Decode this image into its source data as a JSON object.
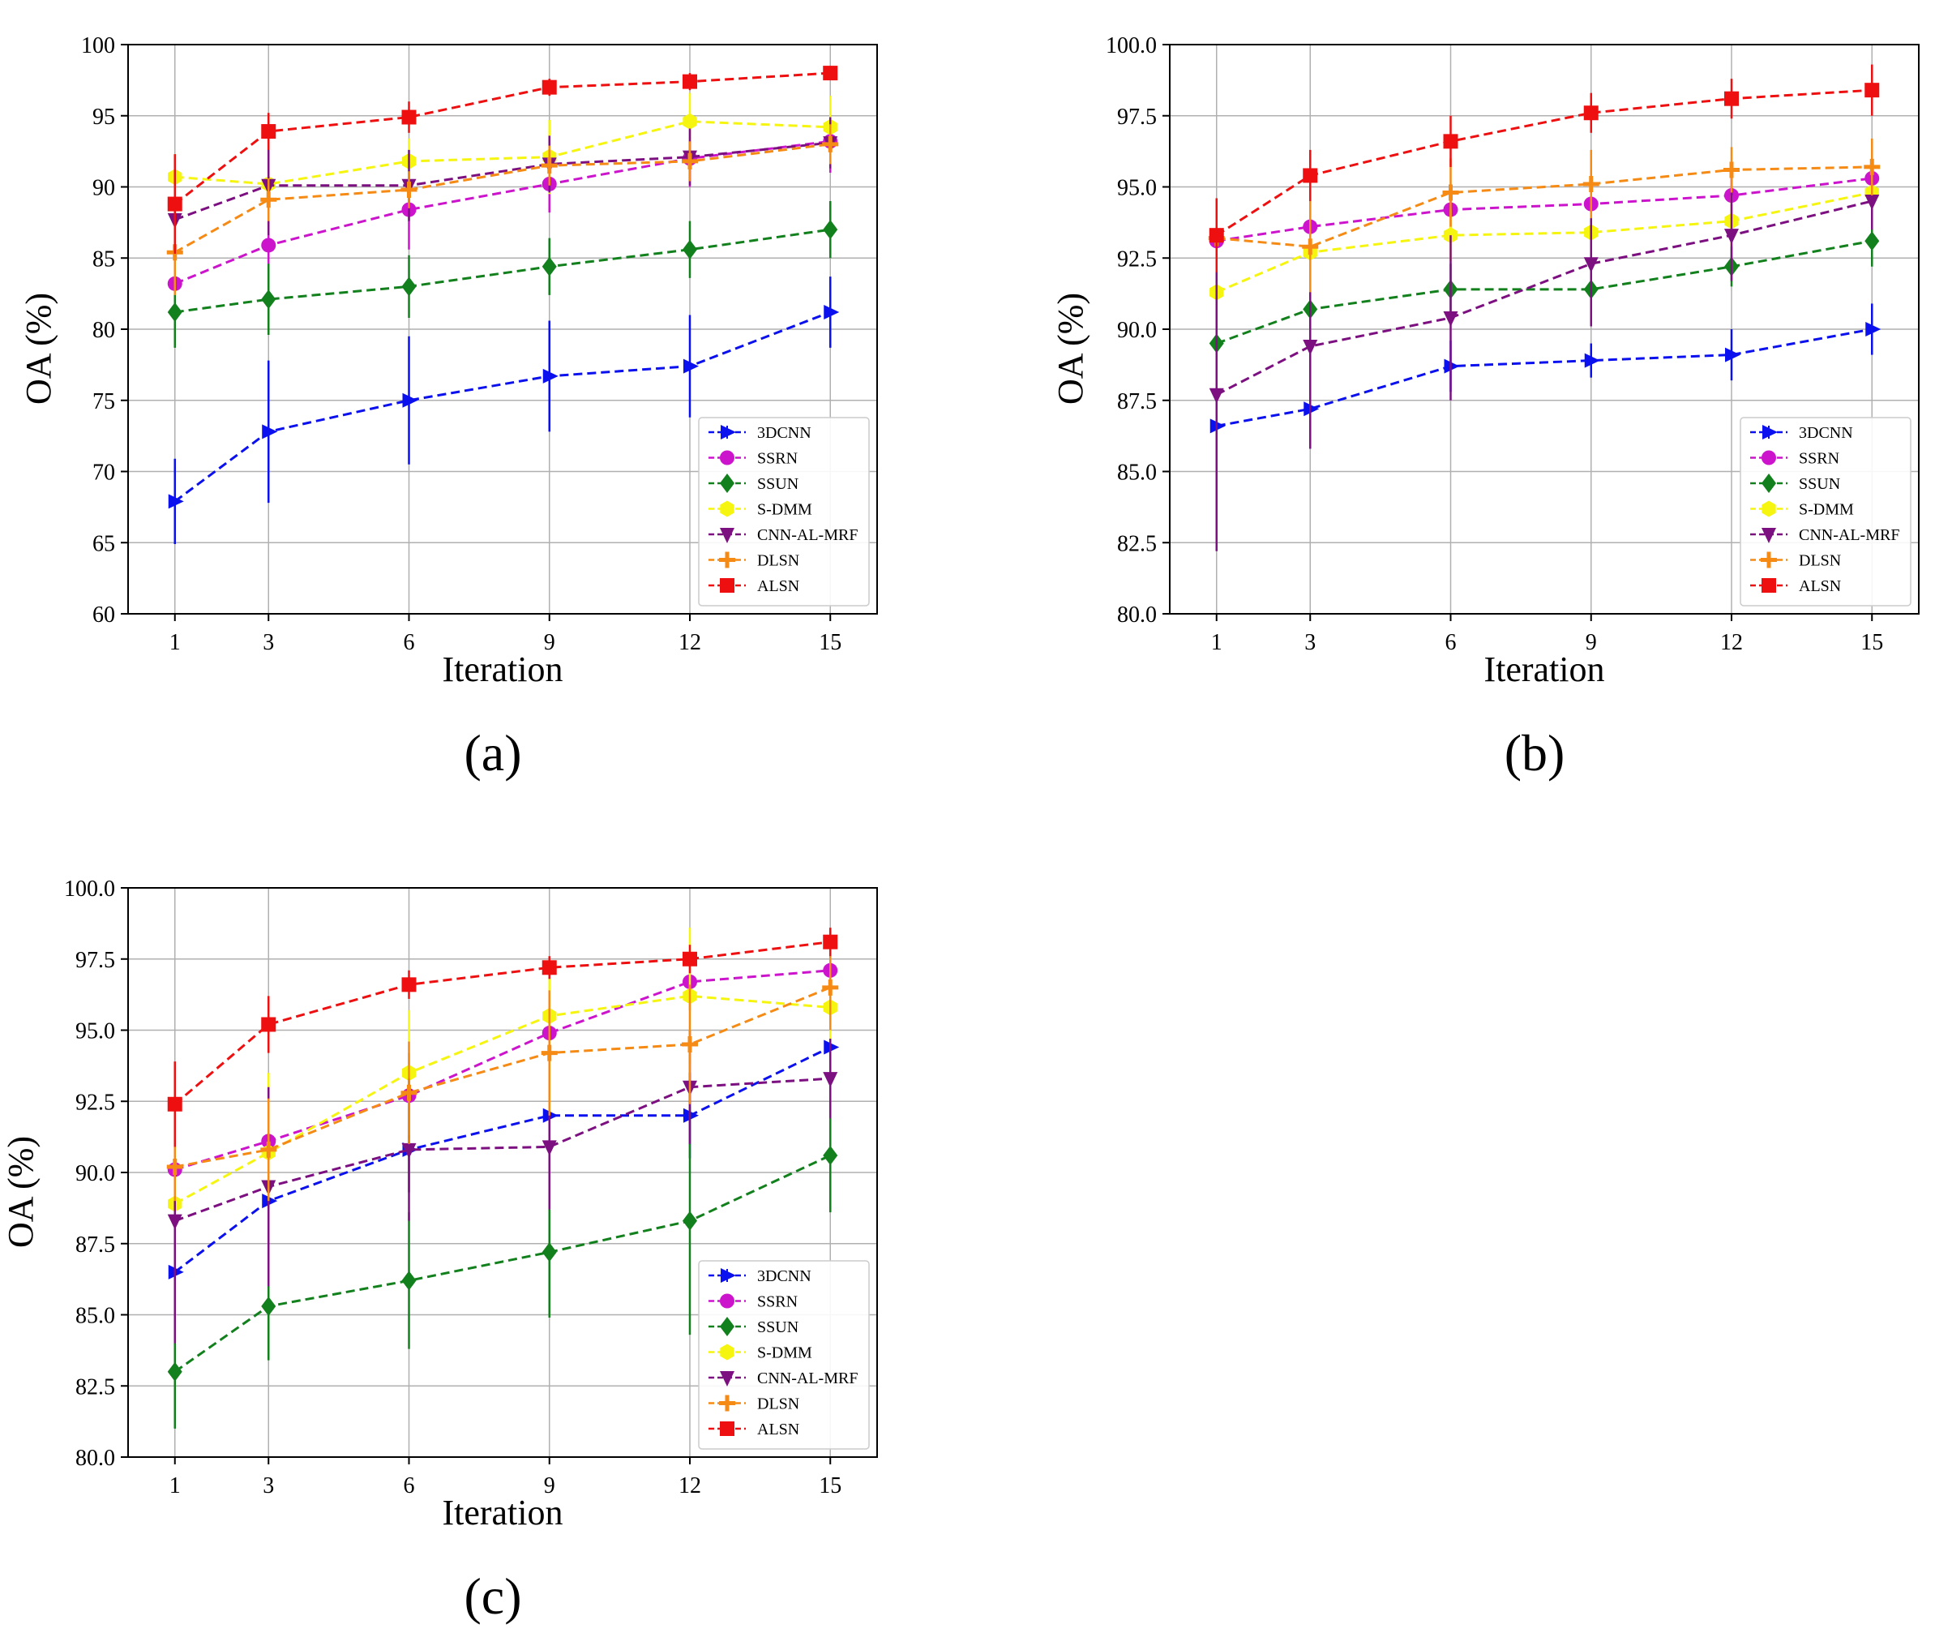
{
  "figure": {
    "caption_labels": [
      "(a)",
      "(b)",
      "(c)"
    ]
  },
  "legend_marker_order": [
    "3DCNN",
    "SSRN",
    "SSUN",
    "S-DMM",
    "CNN-AL-MRF",
    "DLSN",
    "ALSN"
  ],
  "series_styles": {
    "3DCNN": {
      "color": "#0a10ee",
      "marker": "triangle-right"
    },
    "SSRN": {
      "color": "#cc14cc",
      "marker": "circle"
    },
    "SSUN": {
      "color": "#12801c",
      "marker": "diamond"
    },
    "S-DMM": {
      "color": "#f5f50f",
      "marker": "hexagon"
    },
    "CNN-AL-MRF": {
      "color": "#7c1080",
      "marker": "triangle-down"
    },
    "DLSN": {
      "color": "#f58a14",
      "marker": "plus"
    },
    "ALSN": {
      "color": "#ee1010",
      "marker": "square"
    }
  },
  "chart_data": [
    {
      "id": "a",
      "type": "line",
      "label": "(a)",
      "xlabel": "Iteration",
      "ylabel": "OA (%)",
      "x": [
        1,
        3,
        6,
        9,
        12,
        15
      ],
      "xlim": [
        0,
        16
      ],
      "ylim": [
        60,
        100
      ],
      "yticks": [
        "60",
        "65",
        "70",
        "75",
        "80",
        "85",
        "90",
        "95",
        "100"
      ],
      "ytick_values": [
        60,
        65,
        70,
        75,
        80,
        85,
        90,
        95,
        100
      ],
      "grid": true,
      "legend_position": "bottom-right",
      "series": [
        {
          "name": "3DCNN",
          "values": [
            67.9,
            72.8,
            75.0,
            76.7,
            77.4,
            81.2
          ],
          "errors": [
            3.0,
            5.0,
            4.5,
            3.9,
            3.6,
            2.5
          ]
        },
        {
          "name": "SSRN",
          "values": [
            83.2,
            85.9,
            88.4,
            90.2,
            92.0,
            93.2
          ],
          "errors": [
            2.2,
            2.5,
            2.8,
            2.0,
            2.0,
            2.2
          ]
        },
        {
          "name": "SSUN",
          "values": [
            81.2,
            82.1,
            83.0,
            84.4,
            85.6,
            87.0
          ],
          "errors": [
            2.5,
            2.5,
            2.2,
            2.0,
            2.0,
            2.0
          ]
        },
        {
          "name": "S-DMM",
          "values": [
            90.7,
            90.2,
            91.8,
            92.1,
            94.6,
            94.2
          ],
          "errors": [
            1.6,
            1.4,
            1.6,
            2.6,
            2.0,
            2.2
          ]
        },
        {
          "name": "CNN-AL-MRF",
          "values": [
            87.7,
            90.1,
            90.1,
            91.6,
            92.1,
            93.1
          ],
          "errors": [
            3.0,
            3.5,
            2.5,
            2.0,
            2.0,
            1.8
          ]
        },
        {
          "name": "DLSN",
          "values": [
            85.4,
            89.1,
            89.8,
            91.5,
            91.8,
            93.0
          ],
          "errors": [
            3.0,
            1.5,
            1.3,
            1.4,
            1.4,
            1.4
          ]
        },
        {
          "name": "ALSN",
          "values": [
            88.8,
            93.9,
            94.9,
            97.0,
            97.4,
            98.0
          ],
          "errors": [
            3.5,
            1.3,
            1.1,
            0.6,
            0.6,
            0.5
          ]
        }
      ]
    },
    {
      "id": "b",
      "type": "line",
      "label": "(b)",
      "xlabel": "Iteration",
      "ylabel": "OA (%)",
      "x": [
        1,
        3,
        6,
        9,
        12,
        15
      ],
      "xlim": [
        0,
        16
      ],
      "ylim": [
        80,
        100
      ],
      "yticks": [
        "80.0",
        "82.5",
        "85.0",
        "87.5",
        "90.0",
        "92.5",
        "95.0",
        "97.5",
        "100.0"
      ],
      "ytick_values": [
        80,
        82.5,
        85,
        87.5,
        90,
        92.5,
        95,
        97.5,
        100
      ],
      "grid": true,
      "legend_position": "bottom-right",
      "series": [
        {
          "name": "3DCNN",
          "values": [
            86.6,
            87.2,
            88.7,
            88.9,
            89.1,
            90.0
          ],
          "errors": [
            1.5,
            1.4,
            0.9,
            0.6,
            0.9,
            0.9
          ]
        },
        {
          "name": "SSRN",
          "values": [
            93.1,
            93.6,
            94.2,
            94.4,
            94.7,
            95.3
          ],
          "errors": [
            1.5,
            0.8,
            0.8,
            0.8,
            0.7,
            0.6
          ]
        },
        {
          "name": "SSUN",
          "values": [
            89.5,
            90.7,
            91.4,
            91.4,
            92.2,
            93.1
          ],
          "errors": [
            1.4,
            1.0,
            0.9,
            0.8,
            0.7,
            0.9
          ]
        },
        {
          "name": "S-DMM",
          "values": [
            91.3,
            92.7,
            93.3,
            93.4,
            93.8,
            94.8
          ],
          "errors": [
            1.3,
            1.0,
            0.9,
            0.9,
            0.9,
            0.8
          ]
        },
        {
          "name": "CNN-AL-MRF",
          "values": [
            87.7,
            89.4,
            90.4,
            92.3,
            93.3,
            94.5
          ],
          "errors": [
            5.5,
            3.6,
            2.9,
            2.2,
            1.6,
            1.0
          ]
        },
        {
          "name": "DLSN",
          "values": [
            93.2,
            92.9,
            94.8,
            95.1,
            95.6,
            95.7
          ],
          "errors": [
            1.1,
            1.6,
            1.2,
            1.2,
            0.8,
            1.0
          ]
        },
        {
          "name": "ALSN",
          "values": [
            93.3,
            95.4,
            96.6,
            97.6,
            98.1,
            98.4
          ],
          "errors": [
            1.3,
            0.9,
            0.9,
            0.7,
            0.7,
            0.9
          ]
        }
      ]
    },
    {
      "id": "c",
      "type": "line",
      "label": "(c)",
      "xlabel": "Iteration",
      "ylabel": "OA (%)",
      "x": [
        1,
        3,
        6,
        9,
        12,
        15
      ],
      "xlim": [
        0,
        16
      ],
      "ylim": [
        80,
        100
      ],
      "yticks": [
        "80.0",
        "82.5",
        "85.0",
        "87.5",
        "90.0",
        "92.5",
        "95.0",
        "97.5",
        "100.0"
      ],
      "ytick_values": [
        80,
        82.5,
        85,
        87.5,
        90,
        92.5,
        95,
        97.5,
        100
      ],
      "grid": true,
      "legend_position": "bottom-right",
      "series": [
        {
          "name": "3DCNN",
          "values": [
            86.5,
            89.0,
            90.8,
            92.0,
            92.0,
            94.4
          ],
          "errors": [
            2.0,
            1.8,
            1.5,
            1.5,
            1.5,
            1.2
          ]
        },
        {
          "name": "SSRN",
          "values": [
            90.1,
            91.1,
            92.7,
            94.9,
            96.7,
            97.1
          ],
          "errors": [
            1.5,
            1.4,
            1.5,
            1.2,
            1.0,
            0.8
          ]
        },
        {
          "name": "SSUN",
          "values": [
            83.0,
            85.3,
            86.2,
            87.2,
            88.3,
            90.6
          ],
          "errors": [
            2.0,
            1.9,
            2.4,
            2.3,
            4.0,
            2.0
          ]
        },
        {
          "name": "S-DMM",
          "values": [
            88.9,
            90.7,
            93.5,
            95.5,
            96.2,
            95.8
          ],
          "errors": [
            1.5,
            2.8,
            2.2,
            2.0,
            2.4,
            1.5
          ]
        },
        {
          "name": "CNN-AL-MRF",
          "values": [
            88.3,
            89.5,
            90.8,
            90.9,
            93.0,
            93.3
          ],
          "errors": [
            4.3,
            3.5,
            2.5,
            2.2,
            2.0,
            1.4
          ]
        },
        {
          "name": "DLSN",
          "values": [
            90.2,
            90.8,
            92.8,
            94.2,
            94.5,
            96.5
          ],
          "errors": [
            1.2,
            1.8,
            1.8,
            2.2,
            2.1,
            1.5
          ]
        },
        {
          "name": "ALSN",
          "values": [
            92.4,
            95.2,
            96.6,
            97.2,
            97.5,
            98.1
          ],
          "errors": [
            1.5,
            1.0,
            0.5,
            0.4,
            0.5,
            0.5
          ]
        }
      ]
    }
  ]
}
